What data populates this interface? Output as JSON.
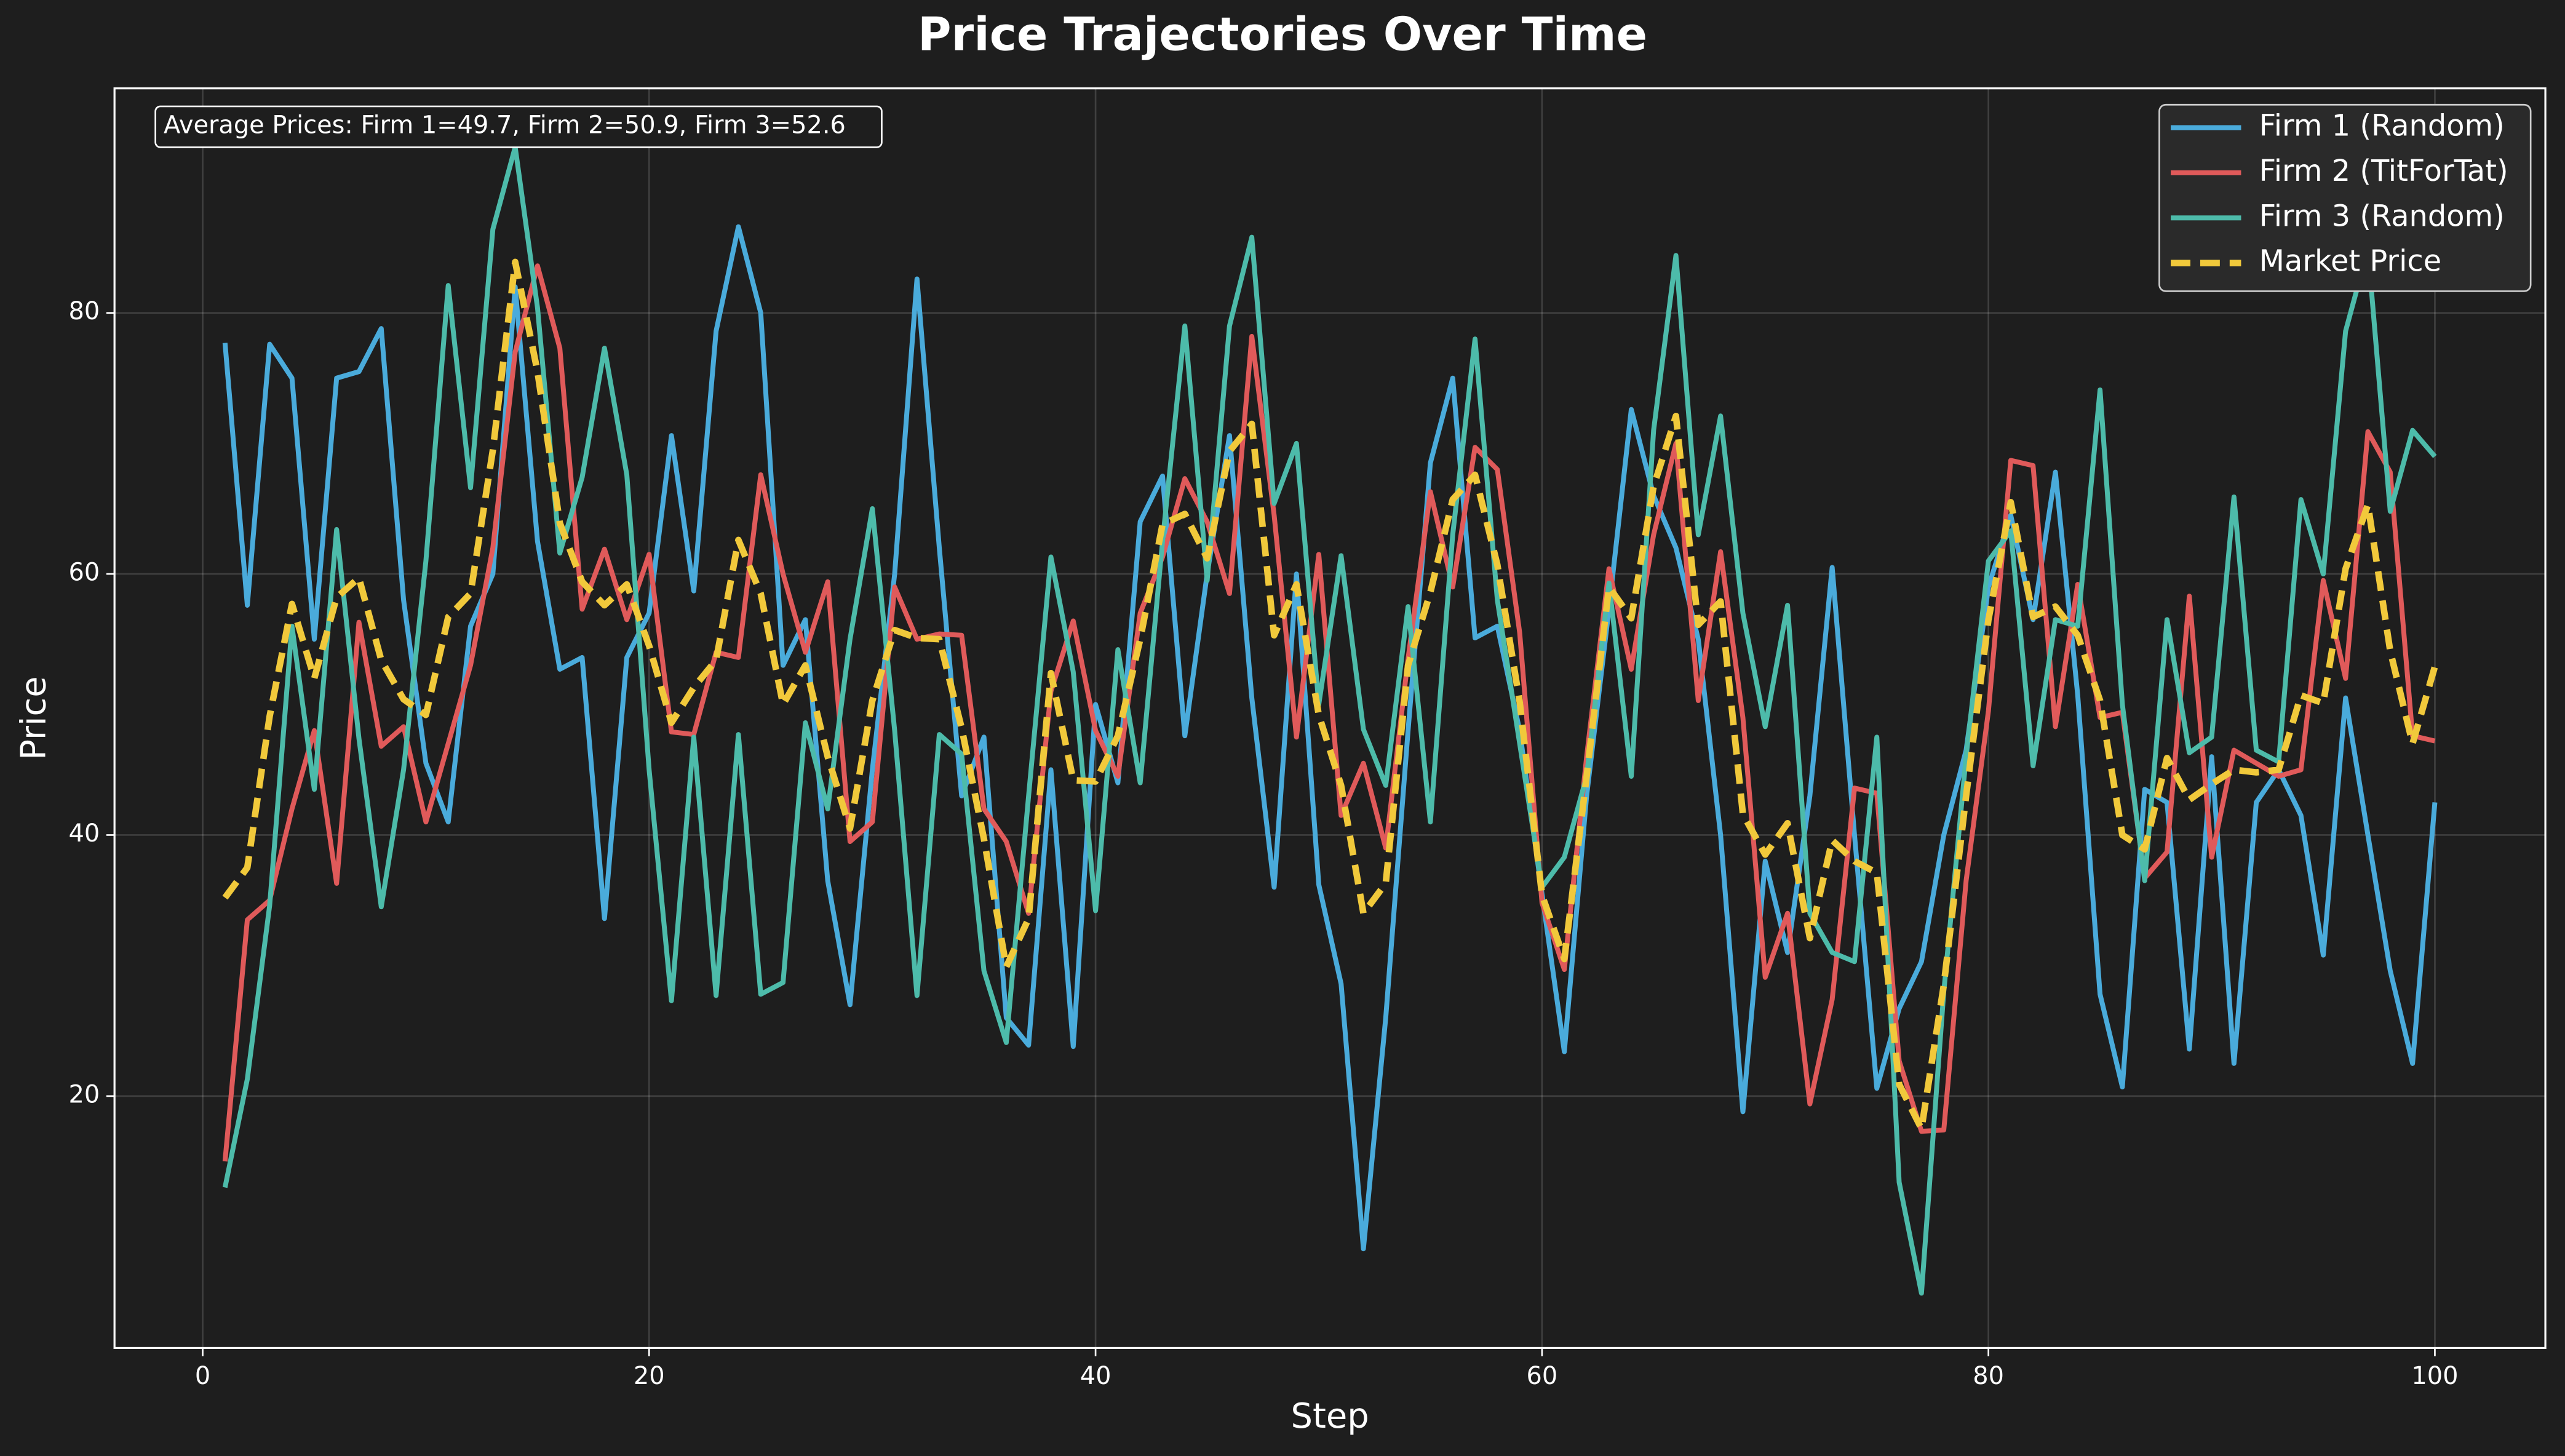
{
  "chart_data": {
    "type": "line",
    "title": "Price Trajectories Over Time",
    "xlabel": "Step",
    "ylabel": "Price",
    "annotation": "Average Prices: Firm 1=49.7, Firm 2=50.9, Firm 3=52.6",
    "x": [
      1,
      2,
      3,
      4,
      5,
      6,
      7,
      8,
      9,
      10,
      11,
      12,
      13,
      14,
      15,
      16,
      17,
      18,
      19,
      20,
      21,
      22,
      23,
      24,
      25,
      26,
      27,
      28,
      29,
      30,
      31,
      32,
      33,
      34,
      35,
      36,
      37,
      38,
      39,
      40,
      41,
      42,
      43,
      44,
      45,
      46,
      47,
      48,
      49,
      50,
      51,
      52,
      53,
      54,
      55,
      56,
      57,
      58,
      59,
      60,
      61,
      62,
      63,
      64,
      65,
      66,
      67,
      68,
      69,
      70,
      71,
      72,
      73,
      74,
      75,
      76,
      77,
      78,
      79,
      80,
      81,
      82,
      83,
      84,
      85,
      86,
      87,
      88,
      89,
      90,
      91,
      92,
      93,
      94,
      95,
      96,
      97,
      98,
      99,
      100
    ],
    "series": [
      {
        "name": "Firm 1 (Random)",
        "color": "#4aabdb",
        "linestyle": "solid",
        "values": [
          77.7,
          57.6,
          77.6,
          75,
          55,
          75,
          75.5,
          78.8,
          58,
          45.5,
          41,
          56,
          60,
          82,
          62.5,
          52.7,
          53.6,
          33.6,
          53.6,
          57,
          70.6,
          58.7,
          78.6,
          86.6,
          80,
          53,
          56.5,
          36.5,
          27,
          45,
          60,
          82.6,
          62,
          43,
          47.5,
          26,
          23.9,
          45,
          23.8,
          50,
          44,
          64,
          67.5,
          47.6,
          60,
          70.6,
          50.5,
          36,
          60,
          36.2,
          28.6,
          8.3,
          26,
          48,
          68.5,
          75,
          55.1,
          56,
          48,
          35.5,
          23.4,
          43,
          57.3,
          72.6,
          66,
          62,
          55,
          40,
          18.8,
          38,
          31,
          43,
          60.5,
          40,
          20.6,
          26.7,
          30.3,
          40,
          46.5,
          59,
          64.5,
          56.5,
          67.8,
          50.7,
          27.8,
          20.7,
          43.5,
          42.5,
          23.6,
          46,
          22.5,
          42.5,
          45,
          41.5,
          30.8,
          50.5,
          40,
          29.6,
          22.5,
          42.5
        ]
      },
      {
        "name": "Firm 2 (TitForTat)",
        "color": "#e05a5a",
        "linestyle": "solid",
        "values": [
          15,
          33.5,
          35,
          42,
          48,
          36.3,
          56.3,
          46.8,
          48.3,
          41,
          47,
          53,
          62,
          77,
          83.6,
          77.3,
          57.3,
          61.9,
          56.5,
          61.5,
          47.9,
          47.7,
          54,
          53.6,
          67.6,
          60,
          54,
          59.4,
          39.5,
          41,
          59,
          55,
          55.4,
          55.3,
          42,
          39.5,
          34,
          51,
          56.4,
          48,
          44.5,
          57,
          61.3,
          67.3,
          64,
          58.5,
          78.2,
          64.5,
          47.5,
          61.5,
          41.5,
          45.5,
          39,
          53.5,
          66.3,
          59,
          69.7,
          68,
          55.5,
          34.8,
          29.7,
          46,
          60.4,
          52.7,
          63,
          70,
          50.3,
          61.7,
          49,
          29.1,
          34,
          19.4,
          27.4,
          43.6,
          43.2,
          22.7,
          17.3,
          17.4,
          36.5,
          49.5,
          68.7,
          68.3,
          48.3,
          59.2,
          49,
          49.4,
          36.7,
          38.7,
          58.3,
          38.3,
          46.5,
          45.5,
          44.5,
          45,
          59.5,
          52,
          70.9,
          67.8,
          47.6,
          47.2
        ]
      },
      {
        "name": "Firm 3 (Random)",
        "color": "#4dbbaa",
        "linestyle": "solid",
        "values": [
          13,
          21.3,
          34.6,
          56,
          43.5,
          63.4,
          47.4,
          34.5,
          45,
          61,
          82.1,
          66.6,
          86.4,
          92.7,
          80.4,
          61.6,
          67.4,
          77.3,
          67.6,
          45,
          27.3,
          47.5,
          27.7,
          47.7,
          27.8,
          28.7,
          48.6,
          42,
          55,
          65,
          48,
          27.7,
          47.7,
          46.2,
          29.6,
          24.1,
          43,
          61.3,
          52.5,
          34.2,
          54.2,
          44,
          62.5,
          79,
          59.5,
          79,
          85.8,
          65.4,
          70,
          50,
          61.4,
          48.1,
          43.8,
          57.5,
          41,
          63,
          78,
          58,
          47,
          36,
          38.3,
          44.5,
          59.3,
          44.5,
          71,
          84.4,
          63,
          72.1,
          57,
          48.3,
          57.6,
          34,
          31,
          30.3,
          47.5,
          13.4,
          4.9,
          28,
          46,
          61,
          63.3,
          45.3,
          56.5,
          56,
          74.1,
          50,
          36.5,
          56.5,
          46.3,
          47.5,
          65.9,
          46.5,
          45.6,
          65.7,
          60,
          78.6,
          84.9,
          64.8,
          71,
          69
        ]
      },
      {
        "name": "Market Price",
        "color": "#f1c93b",
        "linestyle": "dashed",
        "values": [
          35.2,
          37.5,
          49.1,
          57.7,
          52,
          58.2,
          59.7,
          53.4,
          50.4,
          49.2,
          56.7,
          58.5,
          69.5,
          83.9,
          75.5,
          63.9,
          59.4,
          57.6,
          59.2,
          54.5,
          48.6,
          51.3,
          53.4,
          62.6,
          58.5,
          50,
          53,
          46,
          40.5,
          50.3,
          55.7,
          55.1,
          55,
          48.2,
          39.7,
          29.9,
          33.6,
          52.4,
          44.2,
          44.1,
          47.6,
          55,
          63.8,
          64.6,
          61.2,
          69.4,
          71.5,
          55.3,
          59.2,
          49.2,
          43.8,
          34,
          36.3,
          53,
          58.6,
          65.7,
          67.6,
          60.7,
          50.2,
          35.4,
          30.5,
          44.5,
          59,
          56.6,
          66.7,
          72.1,
          56.1,
          57.9,
          41.6,
          38.5,
          40.9,
          32.1,
          39.6,
          38,
          37.1,
          20.9,
          17.5,
          28.5,
          43,
          56.5,
          65.5,
          56.7,
          57.5,
          55.3,
          50.3,
          40,
          38.9,
          45.9,
          42.7,
          43.9,
          45,
          44.8,
          45,
          50.7,
          50.1,
          60.4,
          65.3,
          54.1,
          47,
          52.9
        ]
      }
    ],
    "xlim": [
      -3.95,
      104.95
    ],
    "ylim": [
      0.7,
      97.2
    ],
    "xticks": [
      0,
      20,
      40,
      60,
      80,
      100
    ],
    "yticks": [
      20,
      40,
      60,
      80
    ],
    "grid": true,
    "legend": "upper right"
  }
}
